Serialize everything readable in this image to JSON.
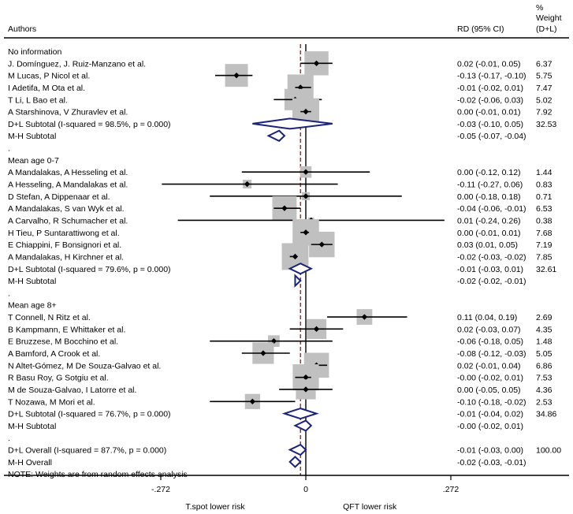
{
  "chart_data": {
    "type": "forest",
    "headers": {
      "authors": "Authors",
      "rd": "RD (95% CI)",
      "weight": [
        "%",
        "Weight",
        "(D+L)"
      ]
    },
    "x_axis": {
      "range": [
        -0.42,
        0.42
      ],
      "ticks": [
        {
          "value": -0.272,
          "label": "-.272"
        },
        {
          "value": 0,
          "label": "0"
        },
        {
          "value": 0.272,
          "label": ".272"
        }
      ],
      "left_label": "T.spot lower risk",
      "right_label": "QFT lower risk"
    },
    "overall_effect": -0.01,
    "footnote": "NOTE: Weights are from random effects analysis",
    "rows": [
      {
        "kind": "header",
        "label": "No information"
      },
      {
        "kind": "study",
        "label": "J. Domínguez, J. Ruiz-Manzano et al.",
        "est": 0.02,
        "lo": -0.01,
        "hi": 0.05,
        "weight": 6.37,
        "ci_text": "0.02 (-0.01, 0.05)",
        "weight_text": "6.37"
      },
      {
        "kind": "study",
        "label": "M Lucas, P Nicol et al.",
        "est": -0.13,
        "lo": -0.17,
        "hi": -0.1,
        "weight": 5.75,
        "ci_text": "-0.13 (-0.17, -0.10)",
        "weight_text": "5.75"
      },
      {
        "kind": "study",
        "label": "I Adetifa, M Ota et al.",
        "est": -0.01,
        "lo": -0.02,
        "hi": 0.01,
        "weight": 7.47,
        "ci_text": "-0.01 (-0.02, 0.01)",
        "weight_text": "7.47"
      },
      {
        "kind": "study",
        "label": "T Li, L Bao et al.",
        "est": -0.02,
        "lo": -0.06,
        "hi": 0.03,
        "weight": 5.02,
        "ci_text": "-0.02 (-0.06, 0.03)",
        "weight_text": "5.02"
      },
      {
        "kind": "study",
        "label": "A Starshinova, V Zhuravlev et al.",
        "est": 0.0,
        "lo": -0.01,
        "hi": 0.01,
        "weight": 7.92,
        "ci_text": "0.00 (-0.01, 0.01)",
        "weight_text": "7.92"
      },
      {
        "kind": "subtotal",
        "label": "D+L Subtotal  (I-squared = 98.5%, p = 0.000)",
        "est": -0.03,
        "lo": -0.1,
        "hi": 0.05,
        "ci_text": "-0.03 (-0.10, 0.05)",
        "weight_text": "32.53"
      },
      {
        "kind": "subtotal",
        "label": "M-H Subtotal",
        "est": -0.05,
        "lo": -0.07,
        "hi": -0.04,
        "ci_text": "-0.05 (-0.07, -0.04)",
        "weight_text": ""
      },
      {
        "kind": "dot",
        "label": "."
      },
      {
        "kind": "header",
        "label": "Mean age 0-7"
      },
      {
        "kind": "study",
        "label": "A Mandalakas, A Hesseling et al.",
        "est": 0.0,
        "lo": -0.12,
        "hi": 0.12,
        "weight": 1.44,
        "ci_text": "0.00 (-0.12, 0.12)",
        "weight_text": "1.44"
      },
      {
        "kind": "study",
        "label": "A Hesseling, A Mandalakas et al.",
        "est": -0.11,
        "lo": -0.27,
        "hi": 0.06,
        "weight": 0.83,
        "ci_text": "-0.11 (-0.27, 0.06)",
        "weight_text": "0.83"
      },
      {
        "kind": "study",
        "label": "D Stefan, A Dippenaar et al.",
        "est": 0.0,
        "lo": -0.18,
        "hi": 0.18,
        "weight": 0.71,
        "ci_text": "0.00 (-0.18, 0.18)",
        "weight_text": "0.71"
      },
      {
        "kind": "study",
        "label": "A Mandalakas, S van Wyk et al.",
        "est": -0.04,
        "lo": -0.06,
        "hi": -0.01,
        "weight": 6.53,
        "ci_text": "-0.04 (-0.06, -0.01)",
        "weight_text": "6.53"
      },
      {
        "kind": "study",
        "label": "A Carvalho, R Schumacher et al.",
        "est": 0.01,
        "lo": -0.24,
        "hi": 0.26,
        "weight": 0.38,
        "ci_text": "0.01 (-0.24, 0.26)",
        "weight_text": "0.38"
      },
      {
        "kind": "study",
        "label": "H Tieu, P Suntarattiwong et al.",
        "est": 0.0,
        "lo": -0.01,
        "hi": 0.01,
        "weight": 7.68,
        "ci_text": "0.00 (-0.01, 0.01)",
        "weight_text": "7.68"
      },
      {
        "kind": "study",
        "label": "E Chiappini, F Bonsignori et al.",
        "est": 0.03,
        "lo": 0.01,
        "hi": 0.05,
        "weight": 7.19,
        "ci_text": "0.03 (0.01, 0.05)",
        "weight_text": "7.19"
      },
      {
        "kind": "study",
        "label": "A Mandalakas, H Kirchner et al.",
        "est": -0.02,
        "lo": -0.03,
        "hi": -0.02,
        "weight": 7.85,
        "ci_text": "-0.02 (-0.03, -0.02)",
        "weight_text": "7.85"
      },
      {
        "kind": "subtotal",
        "label": "D+L Subtotal  (I-squared = 79.6%, p = 0.000)",
        "est": -0.01,
        "lo": -0.03,
        "hi": 0.01,
        "ci_text": "-0.01 (-0.03, 0.01)",
        "weight_text": "32.61"
      },
      {
        "kind": "subtotal",
        "label": "M-H Subtotal",
        "est": -0.02,
        "lo": -0.02,
        "hi": -0.01,
        "ci_text": "-0.02 (-0.02, -0.01)",
        "weight_text": ""
      },
      {
        "kind": "dot",
        "label": "."
      },
      {
        "kind": "header",
        "label": "Mean age 8+"
      },
      {
        "kind": "study",
        "label": "T Connell, N Ritz et al.",
        "est": 0.11,
        "lo": 0.04,
        "hi": 0.19,
        "weight": 2.69,
        "ci_text": "0.11 (0.04, 0.19)",
        "weight_text": "2.69"
      },
      {
        "kind": "study",
        "label": "B Kampmann, E Whittaker et al.",
        "est": 0.02,
        "lo": -0.03,
        "hi": 0.07,
        "weight": 4.35,
        "ci_text": "0.02 (-0.03, 0.07)",
        "weight_text": "4.35"
      },
      {
        "kind": "study",
        "label": "E Bruzzese, M Bocchino et al.",
        "est": -0.06,
        "lo": -0.18,
        "hi": 0.05,
        "weight": 1.48,
        "ci_text": "-0.06 (-0.18, 0.05)",
        "weight_text": "1.48"
      },
      {
        "kind": "study",
        "label": "A Bamford, A Crook et al.",
        "est": -0.08,
        "lo": -0.12,
        "hi": -0.03,
        "weight": 5.05,
        "ci_text": "-0.08 (-0.12, -0.03)",
        "weight_text": "5.05"
      },
      {
        "kind": "study",
        "label": "N Altet-Gómez, M De Souza-Galvao et al.",
        "est": 0.02,
        "lo": -0.01,
        "hi": 0.04,
        "weight": 6.86,
        "ci_text": "0.02 (-0.01, 0.04)",
        "weight_text": "6.86"
      },
      {
        "kind": "study",
        "label": "R Basu Roy, G Sotgiu et al.",
        "est": -0.0,
        "lo": -0.02,
        "hi": 0.01,
        "weight": 7.53,
        "ci_text": "-0.00 (-0.02, 0.01)",
        "weight_text": "7.53"
      },
      {
        "kind": "study",
        "label": "M de Souza-Galvao, I Latorre et al.",
        "est": 0.0,
        "lo": -0.05,
        "hi": 0.05,
        "weight": 4.36,
        "ci_text": "0.00 (-0.05, 0.05)",
        "weight_text": "4.36"
      },
      {
        "kind": "study",
        "label": "T Nozawa, M Mori et al.",
        "est": -0.1,
        "lo": -0.18,
        "hi": -0.02,
        "weight": 2.53,
        "ci_text": "-0.10 (-0.18, -0.02)",
        "weight_text": "2.53"
      },
      {
        "kind": "subtotal",
        "label": "D+L Subtotal  (I-squared = 76.7%, p = 0.000)",
        "est": -0.01,
        "lo": -0.04,
        "hi": 0.02,
        "ci_text": "-0.01 (-0.04, 0.02)",
        "weight_text": "34.86"
      },
      {
        "kind": "subtotal",
        "label": "M-H Subtotal",
        "est": -0.0,
        "lo": -0.02,
        "hi": 0.01,
        "ci_text": "-0.00 (-0.02, 0.01)",
        "weight_text": ""
      },
      {
        "kind": "dot",
        "label": "."
      },
      {
        "kind": "subtotal",
        "label": "D+L Overall  (I-squared = 87.7%, p = 0.000)",
        "est": -0.01,
        "lo": -0.03,
        "hi": 0.0,
        "ci_text": "-0.01 (-0.03, 0.00)",
        "weight_text": "100.00"
      },
      {
        "kind": "subtotal",
        "label": "M-H Overall",
        "est": -0.02,
        "lo": -0.03,
        "hi": -0.01,
        "ci_text": "-0.02 (-0.03, -0.01)",
        "weight_text": ""
      }
    ]
  },
  "colors": {
    "box": "#c0c0c0",
    "diamond": "#1a237e",
    "dashed_line": "#8b1a1a",
    "line": "#000000"
  }
}
